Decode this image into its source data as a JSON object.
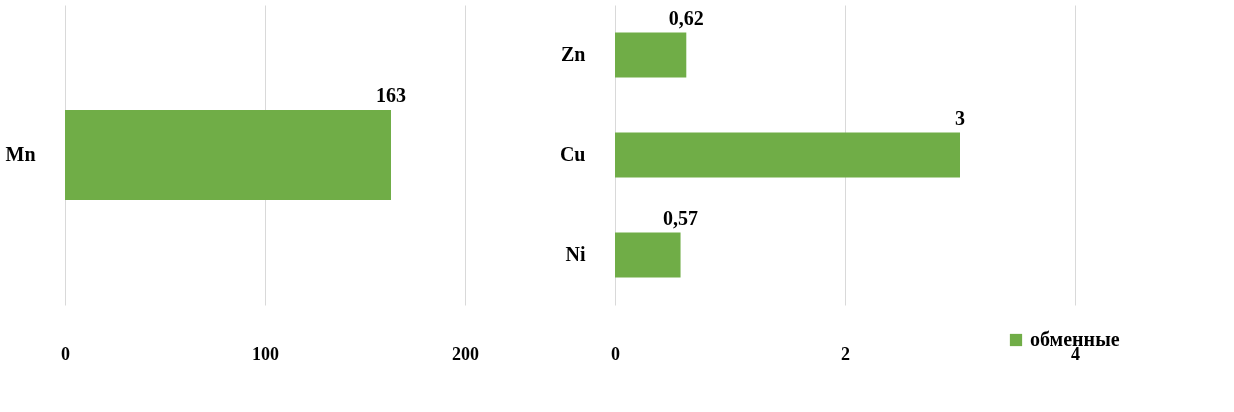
{
  "chart_data": [
    {
      "type": "bar",
      "orientation": "horizontal",
      "categories": [
        "Mn"
      ],
      "series": [
        {
          "color": "#70ad47",
          "values": [
            163
          ],
          "value_labels": [
            "163"
          ]
        }
      ],
      "xlim": [
        0,
        200
      ],
      "xticks": [
        0,
        100,
        200
      ],
      "grid": "x",
      "legend": false
    },
    {
      "type": "bar",
      "orientation": "horizontal",
      "categories": [
        "Zn",
        "Cu",
        "Ni"
      ],
      "series": [
        {
          "name": "обменные",
          "color": "#70ad47",
          "values": [
            0.62,
            3,
            0.57
          ],
          "value_labels": [
            "0,62",
            "3",
            "0,57"
          ]
        }
      ],
      "xlim": [
        0,
        4
      ],
      "xticks": [
        0,
        2,
        4
      ],
      "grid": "x",
      "legend": "bottom right"
    }
  ]
}
